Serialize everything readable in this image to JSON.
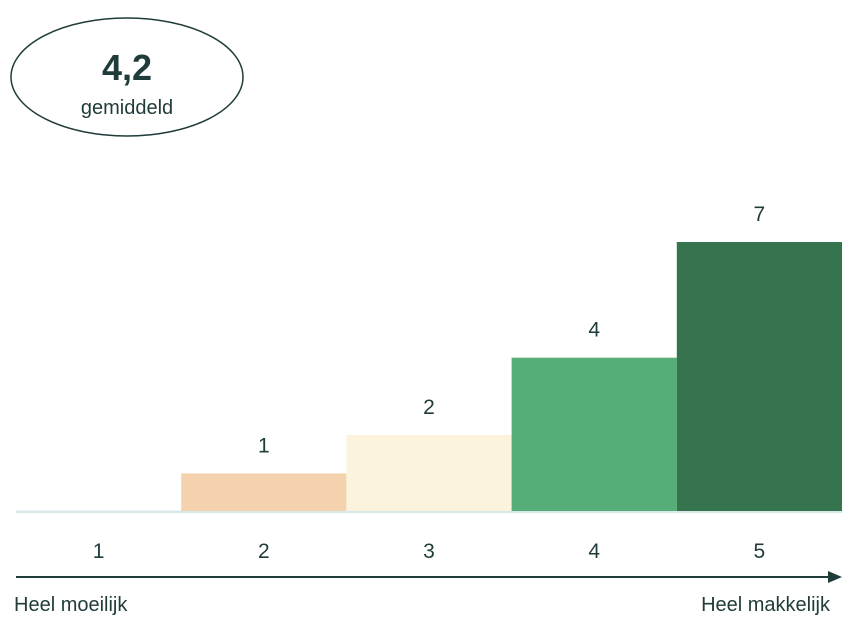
{
  "summary": {
    "value": "4,2",
    "label": "gemiddeld"
  },
  "scale_labels": {
    "left": "Heel moeilijk",
    "right": "Heel makkelijk"
  },
  "colors": {
    "text": "#1f3b3a",
    "baseline": "#d6e9ea",
    "arrow": "#1f3b3a",
    "bars": [
      "#eef3f3",
      "#f5d2ae",
      "#fbf3dc",
      "#55ad77",
      "#36744f"
    ]
  },
  "chart_data": {
    "type": "bar",
    "categories": [
      "1",
      "2",
      "3",
      "4",
      "5"
    ],
    "values": [
      0,
      1,
      2,
      4,
      7
    ],
    "data_labels": [
      "",
      "1",
      "2",
      "4",
      "7"
    ],
    "ylim": [
      0,
      7
    ],
    "grid": false,
    "legend": "none"
  }
}
